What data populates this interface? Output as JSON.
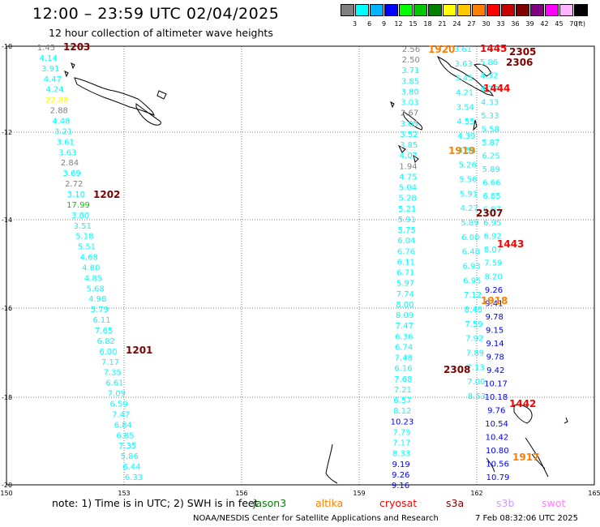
{
  "title": "12:00 – 23:59 UTC 02/04/2025",
  "subtitle": "12 hour collection of altimeter wave heights",
  "colorbar": {
    "unit": "(ft)",
    "colors": [
      "#808080",
      "#00ffff",
      "#00b4ff",
      "#0000ff",
      "#00ff00",
      "#00c800",
      "#008000",
      "#ffff00",
      "#ffc800",
      "#ff8000",
      "#ff0000",
      "#c80000",
      "#800000",
      "#800080",
      "#ff00ff",
      "#ffb4ff",
      "#000000"
    ],
    "labels": [
      "3",
      "6",
      "9",
      "12",
      "15",
      "18",
      "21",
      "24",
      "27",
      "30",
      "33",
      "36",
      "39",
      "42",
      "45",
      "70"
    ]
  },
  "axes": {
    "lon_labels": [
      "150",
      "153",
      "156",
      "159",
      "162",
      "165"
    ],
    "lat_labels": [
      "-10",
      "-12",
      "-14",
      "-16",
      "-18",
      "-20"
    ]
  },
  "passes": [
    {
      "id": "1203",
      "color": "#800000"
    },
    {
      "id": "1202",
      "color": "#800000"
    },
    {
      "id": "1201",
      "color": "#800000"
    },
    {
      "id": "1920",
      "color": "#ff8000"
    },
    {
      "id": "1919",
      "color": "#ff8000"
    },
    {
      "id": "1918",
      "color": "#ff8000"
    },
    {
      "id": "1917",
      "color": "#ff8000"
    },
    {
      "id": "1445",
      "color": "#ff0000"
    },
    {
      "id": "1444",
      "color": "#ff0000"
    },
    {
      "id": "1443",
      "color": "#ff0000"
    },
    {
      "id": "1442",
      "color": "#ff0000"
    },
    {
      "id": "2305",
      "color": "#800000"
    },
    {
      "id": "2306",
      "color": "#800000"
    },
    {
      "id": "2307",
      "color": "#800000"
    },
    {
      "id": "2308",
      "color": "#800000"
    }
  ],
  "track_a": [
    {
      "v": "1.45",
      "c": "#808080"
    },
    {
      "v": "4.14",
      "c": "#00ffff"
    },
    {
      "v": "3.91",
      "c": "#00ffff"
    },
    {
      "v": "4.47",
      "c": "#00ffff"
    },
    {
      "v": "4.24",
      "c": "#00ffff"
    },
    {
      "v": "22.88",
      "c": "#ffff00"
    },
    {
      "v": "2.88",
      "c": "#808080"
    },
    {
      "v": "4.48",
      "c": "#00ffff"
    },
    {
      "v": "3.21",
      "c": "#00ffff"
    },
    {
      "v": "3.61",
      "c": "#00ffff"
    },
    {
      "v": "3.63",
      "c": "#00ffff"
    },
    {
      "v": "2.84",
      "c": "#808080"
    },
    {
      "v": "3.69",
      "c": "#00ffff"
    },
    {
      "v": "2.72",
      "c": "#808080"
    },
    {
      "v": "3.10",
      "c": "#00ffff"
    },
    {
      "v": "17.99",
      "c": "#00c800"
    },
    {
      "v": "3.80",
      "c": "#00ffff"
    },
    {
      "v": "3.51",
      "c": "#00ffff"
    },
    {
      "v": "5.18",
      "c": "#00ffff"
    },
    {
      "v": "5.51",
      "c": "#00ffff"
    },
    {
      "v": "4.68",
      "c": "#00ffff"
    },
    {
      "v": "4.80",
      "c": "#00ffff"
    },
    {
      "v": "4.85",
      "c": "#00ffff"
    },
    {
      "v": "5.68",
      "c": "#00ffff"
    },
    {
      "v": "4.98",
      "c": "#00ffff"
    },
    {
      "v": "5.79",
      "c": "#00ffff"
    },
    {
      "v": "6.11",
      "c": "#00ffff"
    },
    {
      "v": "7.65",
      "c": "#00ffff"
    },
    {
      "v": "6.82",
      "c": "#00ffff"
    },
    {
      "v": "6.00",
      "c": "#00ffff"
    },
    {
      "v": "7.17",
      "c": "#00ffff"
    },
    {
      "v": "7.35",
      "c": "#00ffff"
    },
    {
      "v": "6.61",
      "c": "#00ffff"
    },
    {
      "v": "7.09",
      "c": "#00ffff"
    },
    {
      "v": "6.59",
      "c": "#00ffff"
    },
    {
      "v": "7.47",
      "c": "#00ffff"
    },
    {
      "v": "6.84",
      "c": "#00ffff"
    },
    {
      "v": "6.85",
      "c": "#00ffff"
    },
    {
      "v": "7.35",
      "c": "#00ffff"
    },
    {
      "v": "5.86",
      "c": "#00ffff"
    },
    {
      "v": "6.44",
      "c": "#00ffff"
    },
    {
      "v": "6.33",
      "c": "#00ffff"
    }
  ],
  "track_b": [
    {
      "v": "2.56",
      "c": "#808080"
    },
    {
      "v": "2.50",
      "c": "#808080"
    },
    {
      "v": "3.71",
      "c": "#00ffff"
    },
    {
      "v": "3.85",
      "c": "#00ffff"
    },
    {
      "v": "3.80",
      "c": "#00ffff"
    },
    {
      "v": "3.03",
      "c": "#00ffff"
    },
    {
      "v": "2.67",
      "c": "#808080"
    },
    {
      "v": "3.05",
      "c": "#00ffff"
    },
    {
      "v": "3.52",
      "c": "#00ffff"
    },
    {
      "v": "3.85",
      "c": "#00ffff"
    },
    {
      "v": "4.07",
      "c": "#00ffff"
    },
    {
      "v": "1.94",
      "c": "#808080"
    },
    {
      "v": "4.75",
      "c": "#00ffff"
    },
    {
      "v": "5.04",
      "c": "#00ffff"
    },
    {
      "v": "5.28",
      "c": "#00ffff"
    },
    {
      "v": "5.21",
      "c": "#00ffff"
    },
    {
      "v": "5.91",
      "c": "#00ffff"
    },
    {
      "v": "5.75",
      "c": "#00ffff"
    },
    {
      "v": "6.04",
      "c": "#00ffff"
    },
    {
      "v": "6.76",
      "c": "#00ffff"
    },
    {
      "v": "6.11",
      "c": "#00ffff"
    },
    {
      "v": "6.71",
      "c": "#00ffff"
    },
    {
      "v": "5.97",
      "c": "#00ffff"
    },
    {
      "v": "7.74",
      "c": "#00ffff"
    },
    {
      "v": "8.00",
      "c": "#00ffff"
    },
    {
      "v": "8.09",
      "c": "#00ffff"
    },
    {
      "v": "7.47",
      "c": "#00ffff"
    },
    {
      "v": "6.36",
      "c": "#00ffff"
    },
    {
      "v": "6.74",
      "c": "#00ffff"
    },
    {
      "v": "7.48",
      "c": "#00ffff"
    },
    {
      "v": "6.16",
      "c": "#00ffff"
    },
    {
      "v": "7.68",
      "c": "#00ffff"
    },
    {
      "v": "7.21",
      "c": "#00ffff"
    },
    {
      "v": "6.57",
      "c": "#00ffff"
    },
    {
      "v": "8.12",
      "c": "#00ffff"
    },
    {
      "v": "10.23",
      "c": "#0000ff"
    },
    {
      "v": "7.75",
      "c": "#00ffff"
    },
    {
      "v": "7.17",
      "c": "#00ffff"
    },
    {
      "v": "8.33",
      "c": "#00ffff"
    },
    {
      "v": "9.19",
      "c": "#0000ff"
    },
    {
      "v": "9.26",
      "c": "#0000ff"
    },
    {
      "v": "9.16",
      "c": "#0000ff"
    }
  ],
  "track_c": [
    {
      "v": "3.61",
      "c": "#00ffff"
    },
    {
      "v": "3.63",
      "c": "#00ffff"
    },
    {
      "v": "3.45",
      "c": "#00ffff"
    },
    {
      "v": "4.21",
      "c": "#00ffff"
    },
    {
      "v": "3.54",
      "c": "#00ffff"
    },
    {
      "v": "4.55",
      "c": "#00ffff"
    },
    {
      "v": "4.39",
      "c": "#00ffff"
    },
    {
      "v": "4.56",
      "c": "#00ffff"
    },
    {
      "v": "5.26",
      "c": "#00ffff"
    },
    {
      "v": "5.56",
      "c": "#00ffff"
    },
    {
      "v": "5.91",
      "c": "#00ffff"
    },
    {
      "v": "4.27",
      "c": "#00ffff"
    },
    {
      "v": "5.89",
      "c": "#00ffff"
    },
    {
      "v": "6.00",
      "c": "#00ffff"
    },
    {
      "v": "6.48",
      "c": "#00ffff"
    },
    {
      "v": "6.93",
      "c": "#00ffff"
    },
    {
      "v": "6.95",
      "c": "#00ffff"
    },
    {
      "v": "7.12",
      "c": "#00ffff"
    },
    {
      "v": "8.48",
      "c": "#00ffff"
    },
    {
      "v": "7.59",
      "c": "#00ffff"
    },
    {
      "v": "7.92",
      "c": "#00ffff"
    },
    {
      "v": "7.89",
      "c": "#00ffff"
    },
    {
      "v": "7.13",
      "c": "#00ffff"
    },
    {
      "v": "7.00",
      "c": "#00ffff"
    },
    {
      "v": "8.53",
      "c": "#00ffff"
    }
  ],
  "track_d": [
    {
      "v": "5.86",
      "c": "#00ffff"
    },
    {
      "v": "4.52",
      "c": "#00ffff"
    },
    {
      "v": "4.77",
      "c": "#00ffff"
    },
    {
      "v": "4.33",
      "c": "#00ffff"
    },
    {
      "v": "5.33",
      "c": "#00ffff"
    },
    {
      "v": "5.58",
      "c": "#00ffff"
    },
    {
      "v": "5.87",
      "c": "#00ffff"
    },
    {
      "v": "6.25",
      "c": "#00ffff"
    },
    {
      "v": "5.89",
      "c": "#00ffff"
    },
    {
      "v": "6.66",
      "c": "#00ffff"
    },
    {
      "v": "6.85",
      "c": "#00ffff"
    },
    {
      "v": "6.87",
      "c": "#00ffff"
    },
    {
      "v": "6.95",
      "c": "#00ffff"
    },
    {
      "v": "6.92",
      "c": "#00ffff"
    },
    {
      "v": "8.07",
      "c": "#00ffff"
    },
    {
      "v": "7.59",
      "c": "#00ffff"
    },
    {
      "v": "8.20",
      "c": "#00ffff"
    },
    {
      "v": "9.26",
      "c": "#0000ff"
    },
    {
      "v": "9.41",
      "c": "#0000ff"
    },
    {
      "v": "9.78",
      "c": "#0000ff"
    },
    {
      "v": "9.15",
      "c": "#0000ff"
    },
    {
      "v": "9.14",
      "c": "#0000ff"
    },
    {
      "v": "9.78",
      "c": "#0000ff"
    },
    {
      "v": "9.42",
      "c": "#0000ff"
    },
    {
      "v": "10.17",
      "c": "#0000ff"
    },
    {
      "v": "10.18",
      "c": "#0000ff"
    },
    {
      "v": "9.76",
      "c": "#0000ff"
    },
    {
      "v": "10.54",
      "c": "#0000ff"
    },
    {
      "v": "10.42",
      "c": "#0000ff"
    },
    {
      "v": "10.80",
      "c": "#0000ff"
    },
    {
      "v": "10.56",
      "c": "#0000ff"
    },
    {
      "v": "10.79",
      "c": "#0000ff"
    }
  ],
  "note": {
    "text": "note:  1) Time is in UTC; 2) SWH is in feet",
    "satellites": [
      {
        "name": "jason3",
        "color": "#008000"
      },
      {
        "name": "altika",
        "color": "#ff8000"
      },
      {
        "name": "cryosat",
        "color": "#ff0000"
      },
      {
        "name": "s3a",
        "color": "#800000"
      },
      {
        "name": "s3b",
        "color": "#c8a0ff"
      },
      {
        "name": "swot",
        "color": "#ff80ff"
      }
    ]
  },
  "credit": "NOAA/NESDIS Center for Satellite Applications and Research",
  "timestamp": "7 Feb 08:32:06 UTC 2025"
}
